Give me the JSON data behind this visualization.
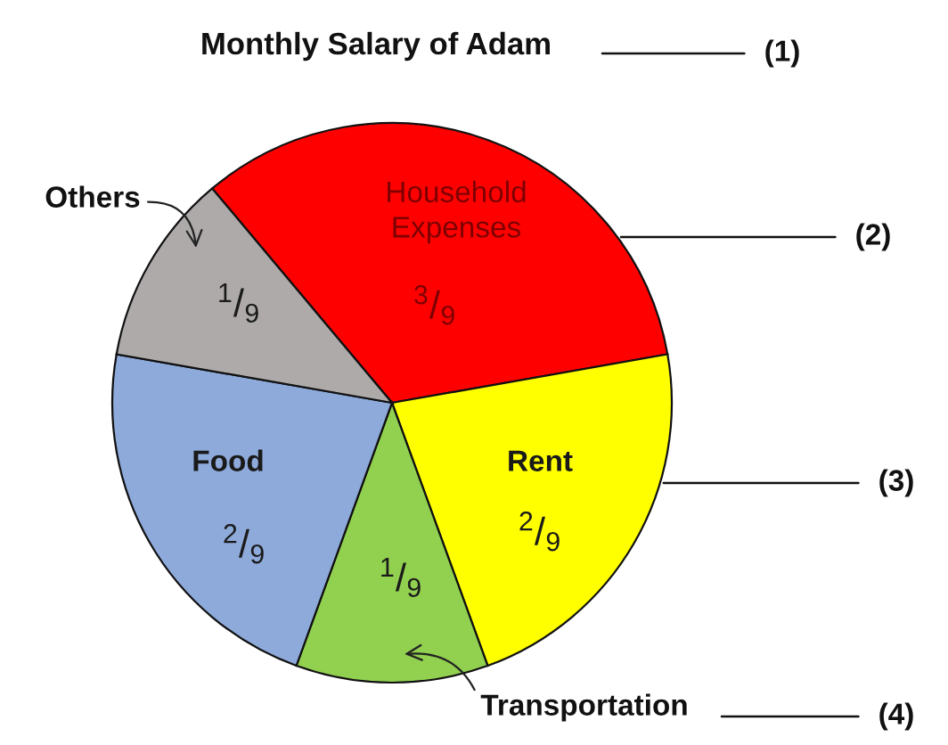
{
  "chart_data": {
    "type": "pie",
    "title": "Monthly Salary of Adam",
    "categories": [
      "Household Expenses",
      "Rent",
      "Transportation",
      "Food",
      "Others"
    ],
    "values": [
      33.33,
      22.22,
      11.11,
      22.22,
      11.11
    ],
    "colors": [
      "#ff0000",
      "#ffff00",
      "#92d050",
      "#8eaadb",
      "#aeaaaa"
    ],
    "value_labels": [
      "$^{3}$/$_{9}$",
      "$^{2}$/$_{9}$",
      "$^{1}$/$_{9}$",
      "$^{2}$/$_{9}$",
      "$^{1}$/$_{9}$"
    ],
    "annotations": [
      "(1)",
      "(2)",
      "(3)",
      "(4)"
    ]
  }
}
